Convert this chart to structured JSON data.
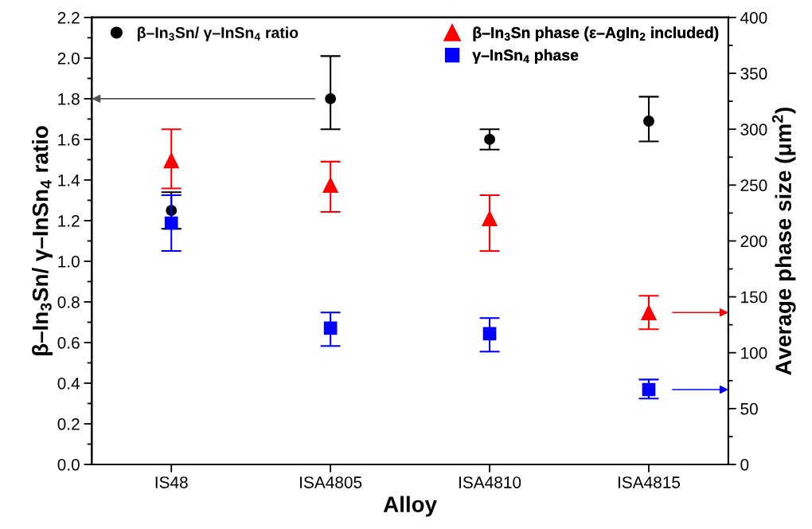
{
  "chart_data": {
    "type": "scatter",
    "xlabel": "Alloy",
    "ylabel": "β–In$_{3}$Sn/ γ–InSn$_{4}$ ratio",
    "y2label": "Average phase size (μm$^{2}$)",
    "categories": [
      "IS48",
      "ISA4805",
      "ISA4810",
      "ISA4815"
    ],
    "ylim": [
      0,
      2.2
    ],
    "yticks": [
      {
        "value": 0,
        "label": "0.0"
      },
      {
        "value": 0.2,
        "label": "0.2"
      },
      {
        "value": 0.4,
        "label": "0.4"
      },
      {
        "value": 0.6,
        "label": "0.6"
      },
      {
        "value": 0.8,
        "label": "0.8"
      },
      {
        "value": 1,
        "label": "1.0"
      },
      {
        "value": 1.2,
        "label": "1.2"
      },
      {
        "value": 1.4,
        "label": "1.4"
      },
      {
        "value": 1.6,
        "label": "1.6"
      },
      {
        "value": 1.8,
        "label": "1.8"
      },
      {
        "value": 2,
        "label": "2.0"
      },
      {
        "value": 2.2,
        "label": "2.2"
      }
    ],
    "y2lim": [
      0,
      400
    ],
    "y2ticks": [
      0,
      50,
      100,
      150,
      200,
      250,
      300,
      350,
      400
    ],
    "legend": "top",
    "grid": false,
    "series": [
      {
        "name": "β–In$_{3}$Sn/ γ–InSn$_{4}$ ratio",
        "color": "#000000",
        "marker": "circle",
        "values": [
          1.25,
          1.8,
          1.6,
          1.69
        ],
        "errors": [
          [
            1.16,
            1.34
          ],
          [
            1.65,
            2.01
          ],
          [
            1.55,
            1.65
          ],
          [
            1.59,
            1.81
          ]
        ]
      },
      {
        "name": "β–In$_{3}$Sn phase (ε–AgIn$_{2}$ included)",
        "color": "#ff0000",
        "marker": "triangle",
        "axis": "y2",
        "values": [
          272,
          250,
          220,
          136
        ],
        "errors": [
          [
            247,
            300
          ],
          [
            226,
            271
          ],
          [
            191,
            241
          ],
          [
            121,
            151
          ]
        ]
      },
      {
        "name": "γ–InSn$_{4}$ phase",
        "color": "#0000ff",
        "marker": "square",
        "axis": "y2",
        "values": [
          216,
          122,
          117,
          67
        ],
        "errors": [
          [
            191,
            241
          ],
          [
            106,
            136
          ],
          [
            101,
            131
          ],
          [
            59,
            76
          ]
        ]
      }
    ]
  }
}
